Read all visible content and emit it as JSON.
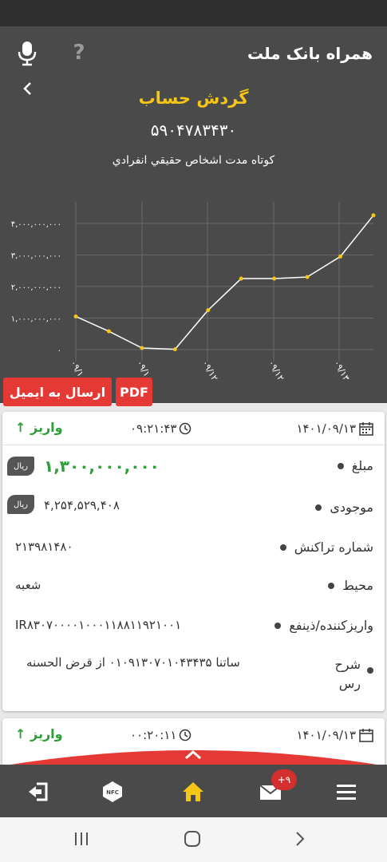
{
  "header": {
    "app_title": "همراه بانک ملت",
    "help_label": "?",
    "page_title": "گردش حساب",
    "account_number": "۵۹۰۴۷۸۳۴۳۰",
    "account_type": "كوتاه مدت اشخاص حقيقي انفرادي"
  },
  "chart_data": {
    "type": "line",
    "x": [
      "۰۹/۱۰",
      "۰۹/۱۰",
      "۰۹/۱۰",
      "۰۹/۱۰",
      "۰۹/۱۲",
      "۰۹/۱۲",
      "۰۹/۱۲",
      "۰۹/۱۳",
      "۰۹/۱۳",
      "۰۹/۱۳"
    ],
    "x_tick_labels": [
      "۰۹/۱۰",
      "۰۹/۱۰",
      "۰۹/۱۲",
      "۰۹/۱۲",
      "۰۹/۱۳"
    ],
    "values": [
      1050000000,
      580000000,
      50000000,
      10000000,
      1250000000,
      2250000000,
      2250000000,
      2300000000,
      2950000000,
      4254529408
    ],
    "y_tick_labels": [
      "۰",
      "۱,۰۰۰,۰۰۰,۰۰۰",
      "۲,۰۰۰,۰۰۰,۰۰۰",
      "۳,۰۰۰,۰۰۰,۰۰۰",
      "۴,۰۰۰,۰۰۰,۰۰۰"
    ],
    "ylim": [
      0,
      4300000000
    ],
    "grid": true,
    "line_color": "#ffffff",
    "point_color": "#f5c518"
  },
  "buttons": {
    "email": "ارسال به ايميل",
    "pdf": "PDF"
  },
  "transactions": [
    {
      "date": "۱۴۰۱/۰۹/۱۳",
      "time": "۰۹:۲۱:۴۳",
      "type": "واريز",
      "amount_label": "مبلغ",
      "amount": "۱,۳۰۰,۰۰۰,۰۰۰",
      "balance_label": "موجودی",
      "balance": "۴,۲۵۴,۵۲۹,۴۰۸",
      "currency": "ريال",
      "tx_label": "شماره تراکنش",
      "tx_number": "۲۱۳۹۸۱۴۸۰",
      "channel_label": "محيط",
      "channel": "شعبه",
      "depositor_label": "واريزكننده/ذينفع",
      "depositor": "IR۸۳۰۷۰۰۰۰۱۰۰۰۱۱۸۸۱۱۹۲۱۰۰۱",
      "desc_label": "شرح رس",
      "desc": "ساتنا ۰۱۰۹۱۳۰۷۰۱۰۴۳۴۳۵ از قرض الحسنه"
    },
    {
      "date": "۱۴۰۱/۰۹/۱۳",
      "time": "۰۰:۲۰:۱۱",
      "type": "واريز"
    }
  ],
  "bottom_nav": {
    "badge": "+۹",
    "nfc_label": "NFC",
    "colors": {
      "active": "#f5c518",
      "accent": "#e53935"
    }
  }
}
